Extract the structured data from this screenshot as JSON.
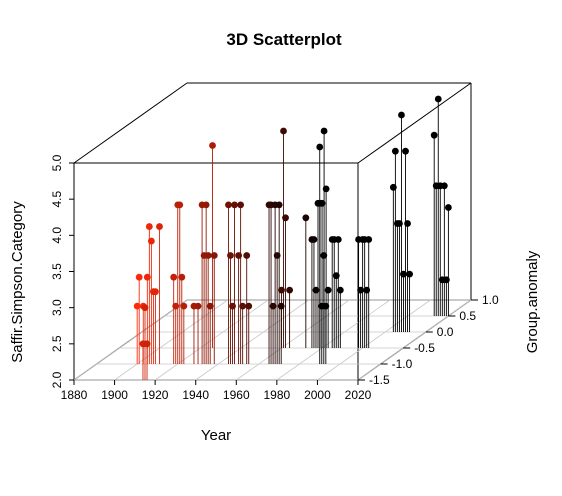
{
  "chart_data": {
    "type": "scatter3d",
    "title": "3D Scatterplot",
    "xlabel": "Year",
    "ylabel": "Group.anomaly",
    "zlabel": "Saffir.Simpson.Category",
    "xlim": [
      1880,
      2020
    ],
    "ylim": [
      -1.5,
      1.0
    ],
    "zlim": [
      2.0,
      5.0
    ],
    "x_ticks": [
      "1880",
      "1900",
      "1920",
      "1940",
      "1960",
      "1980",
      "2000",
      "2020"
    ],
    "y_ticks": [
      "-1.5",
      "-1.0",
      "-0.5",
      "0.0",
      "0.5",
      "1.0"
    ],
    "z_ticks": [
      "2.0",
      "2.5",
      "3.0",
      "3.5",
      "4.0",
      "4.5",
      "5.0"
    ],
    "grid": true,
    "drop_lines": true,
    "color_scale": {
      "early": "#ff2a0a",
      "late": "#000000",
      "encodes": "Year"
    },
    "points": [
      {
        "x": 1900,
        "y": -1.0,
        "z": 2.8
      },
      {
        "x": 1901,
        "y": -1.0,
        "z": 3.2
      },
      {
        "x": 1903,
        "y": -1.0,
        "z": 2.8
      },
      {
        "x": 1905,
        "y": -1.0,
        "z": 3.2
      },
      {
        "x": 1906,
        "y": -1.0,
        "z": 3.9
      },
      {
        "x": 1907,
        "y": -1.0,
        "z": 3.7
      },
      {
        "x": 1908,
        "y": -1.0,
        "z": 3.0
      },
      {
        "x": 1909,
        "y": -1.0,
        "z": 3.0
      },
      {
        "x": 1911,
        "y": -1.0,
        "z": 3.9
      },
      {
        "x": 1914,
        "y": -1.5,
        "z": 2.5
      },
      {
        "x": 1915,
        "y": -1.5,
        "z": 3.0
      },
      {
        "x": 1916,
        "y": -1.5,
        "z": 2.5
      },
      {
        "x": 1918,
        "y": -1.0,
        "z": 3.2
      },
      {
        "x": 1919,
        "y": -1.0,
        "z": 2.8
      },
      {
        "x": 1920,
        "y": -1.0,
        "z": 4.2
      },
      {
        "x": 1921,
        "y": -1.0,
        "z": 4.2
      },
      {
        "x": 1922,
        "y": -1.0,
        "z": 3.2
      },
      {
        "x": 1923,
        "y": -1.0,
        "z": 2.8
      },
      {
        "x": 1926,
        "y": -0.5,
        "z": 4.8
      },
      {
        "x": 1928,
        "y": -1.0,
        "z": 2.8
      },
      {
        "x": 1930,
        "y": -1.0,
        "z": 2.8
      },
      {
        "x": 1932,
        "y": -1.0,
        "z": 4.2
      },
      {
        "x": 1933,
        "y": -1.0,
        "z": 3.5
      },
      {
        "x": 1934,
        "y": -1.0,
        "z": 4.2
      },
      {
        "x": 1935,
        "y": -1.0,
        "z": 3.5
      },
      {
        "x": 1936,
        "y": -1.0,
        "z": 2.8
      },
      {
        "x": 1938,
        "y": -1.0,
        "z": 3.5
      },
      {
        "x": 1945,
        "y": -1.0,
        "z": 4.2
      },
      {
        "x": 1946,
        "y": -1.0,
        "z": 3.5
      },
      {
        "x": 1947,
        "y": -1.0,
        "z": 2.8
      },
      {
        "x": 1948,
        "y": -1.0,
        "z": 4.2
      },
      {
        "x": 1950,
        "y": -1.0,
        "z": 3.5
      },
      {
        "x": 1951,
        "y": -1.0,
        "z": 4.2
      },
      {
        "x": 1952,
        "y": -1.0,
        "z": 2.8
      },
      {
        "x": 1954,
        "y": -1.0,
        "z": 3.5
      },
      {
        "x": 1955,
        "y": -1.0,
        "z": 2.8
      },
      {
        "x": 1960,
        "y": -0.5,
        "z": 2.8
      },
      {
        "x": 1961,
        "y": -0.5,
        "z": 5.0
      },
      {
        "x": 1962,
        "y": -0.5,
        "z": 3.8
      },
      {
        "x": 1964,
        "y": -0.5,
        "z": 2.8
      },
      {
        "x": 1965,
        "y": -1.0,
        "z": 4.2
      },
      {
        "x": 1966,
        "y": -1.0,
        "z": 4.2
      },
      {
        "x": 1967,
        "y": -1.0,
        "z": 2.8
      },
      {
        "x": 1968,
        "y": -1.0,
        "z": 4.2
      },
      {
        "x": 1969,
        "y": -1.0,
        "z": 3.5
      },
      {
        "x": 1970,
        "y": -1.0,
        "z": 4.2
      },
      {
        "x": 1971,
        "y": -1.0,
        "z": 2.8
      },
      {
        "x": 1972,
        "y": -0.5,
        "z": 3.8
      },
      {
        "x": 1975,
        "y": -0.5,
        "z": 3.5
      },
      {
        "x": 1976,
        "y": -0.5,
        "z": 3.5
      },
      {
        "x": 1977,
        "y": -0.5,
        "z": 2.8
      },
      {
        "x": 1978,
        "y": -0.5,
        "z": 4.0
      },
      {
        "x": 1979,
        "y": -0.5,
        "z": 4.0
      },
      {
        "x": 1980,
        "y": -0.5,
        "z": 4.0
      },
      {
        "x": 1981,
        "y": -0.5,
        "z": 5.0
      },
      {
        "x": 1982,
        "y": -0.5,
        "z": 4.2
      },
      {
        "x": 1983,
        "y": -0.5,
        "z": 2.8
      },
      {
        "x": 1985,
        "y": -0.5,
        "z": 3.5
      },
      {
        "x": 1986,
        "y": -0.5,
        "z": 3.5
      },
      {
        "x": 1987,
        "y": -0.5,
        "z": 3.0
      },
      {
        "x": 1988,
        "y": -0.5,
        "z": 3.5
      },
      {
        "x": 1989,
        "y": -0.5,
        "z": 2.8
      },
      {
        "x": 1990,
        "y": -1.0,
        "z": 5.0
      },
      {
        "x": 1991,
        "y": -1.0,
        "z": 2.8
      },
      {
        "x": 1992,
        "y": -1.0,
        "z": 3.5
      },
      {
        "x": 1993,
        "y": -1.0,
        "z": 2.8
      },
      {
        "x": 1998,
        "y": -0.5,
        "z": 3.5
      },
      {
        "x": 1999,
        "y": -0.5,
        "z": 2.8
      },
      {
        "x": 2000,
        "y": -0.5,
        "z": 3.5
      },
      {
        "x": 2001,
        "y": -0.5,
        "z": 3.5
      },
      {
        "x": 2002,
        "y": -0.5,
        "z": 2.8
      },
      {
        "x": 2003,
        "y": -0.5,
        "z": 3.5
      },
      {
        "x": 2004,
        "y": 0.0,
        "z": 4.0
      },
      {
        "x": 2005,
        "y": 0.0,
        "z": 4.5
      },
      {
        "x": 2006,
        "y": 0.0,
        "z": 3.5
      },
      {
        "x": 2007,
        "y": 0.0,
        "z": 3.5
      },
      {
        "x": 2008,
        "y": 0.0,
        "z": 5.0
      },
      {
        "x": 2009,
        "y": 0.0,
        "z": 2.8
      },
      {
        "x": 2010,
        "y": 0.0,
        "z": 4.5
      },
      {
        "x": 2011,
        "y": 0.0,
        "z": 3.5
      },
      {
        "x": 2012,
        "y": 0.0,
        "z": 2.8
      },
      {
        "x": 2013,
        "y": 0.5,
        "z": 4.5
      },
      {
        "x": 2014,
        "y": 0.5,
        "z": 3.8
      },
      {
        "x": 2015,
        "y": 0.5,
        "z": 5.0
      },
      {
        "x": 2016,
        "y": 0.5,
        "z": 3.8
      },
      {
        "x": 2017,
        "y": 0.5,
        "z": 2.5
      },
      {
        "x": 2018,
        "y": 0.5,
        "z": 3.8
      },
      {
        "x": 2019,
        "y": 0.5,
        "z": 2.5
      },
      {
        "x": 2020,
        "y": 0.5,
        "z": 3.5
      }
    ]
  }
}
